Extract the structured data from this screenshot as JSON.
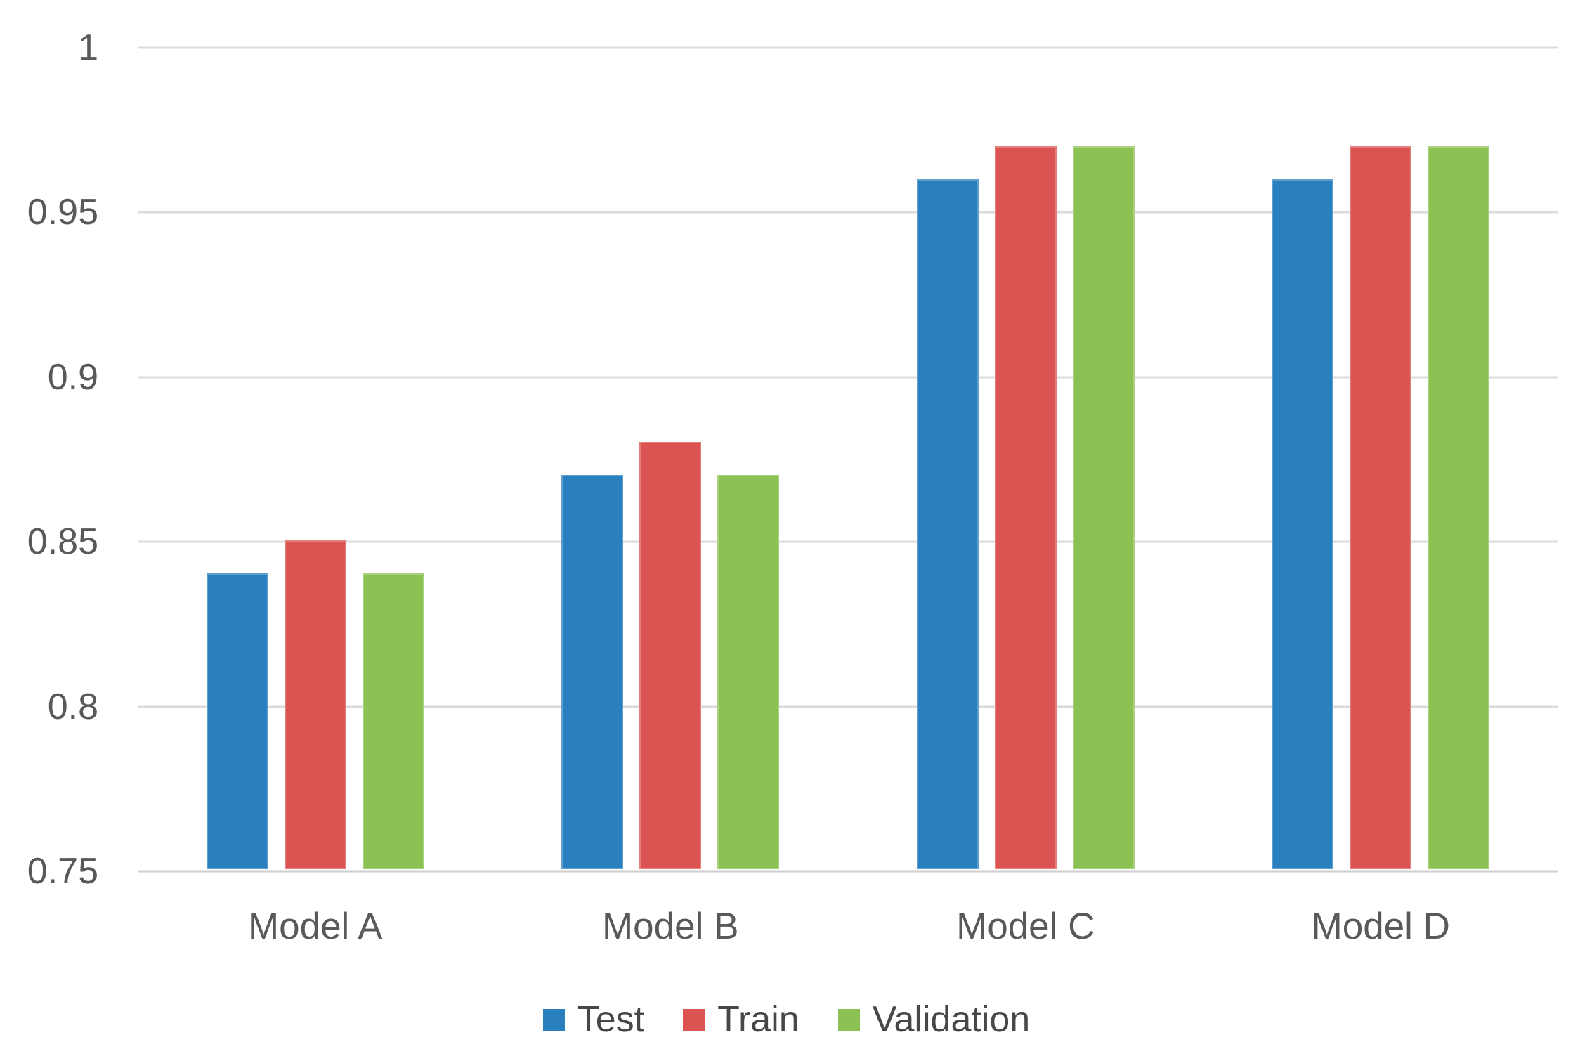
{
  "chart_data": {
    "type": "bar",
    "title": "",
    "xlabel": "",
    "ylabel": "",
    "categories": [
      "Model A",
      "Model B",
      "Model C",
      "Model D"
    ],
    "series": [
      {
        "name": "Test",
        "color": "#2A80BF",
        "values": [
          0.84,
          0.87,
          0.96,
          0.96
        ]
      },
      {
        "name": "Train",
        "color": "#DB5451",
        "values": [
          0.85,
          0.88,
          0.97,
          0.97
        ]
      },
      {
        "name": "Validation",
        "color": "#8CC153",
        "values": [
          0.84,
          0.87,
          0.97,
          0.97
        ]
      }
    ],
    "ylim": [
      0.75,
      1.0
    ],
    "yticks": [
      {
        "value": 1.0,
        "label": "1"
      },
      {
        "value": 0.95,
        "label": "0.95"
      },
      {
        "value": 0.9,
        "label": "0.9"
      },
      {
        "value": 0.85,
        "label": "0.85"
      },
      {
        "value": 0.8,
        "label": "0.8"
      },
      {
        "value": 0.75,
        "label": "0.75"
      }
    ],
    "grid": "horizontal",
    "legend_position": "bottom"
  },
  "colors": {
    "gridline": "#DBDBDB",
    "axis_line": "#CFCFCF",
    "tick_label": "#595959",
    "legend_text": "#474747",
    "background": "#FFFFFF"
  }
}
